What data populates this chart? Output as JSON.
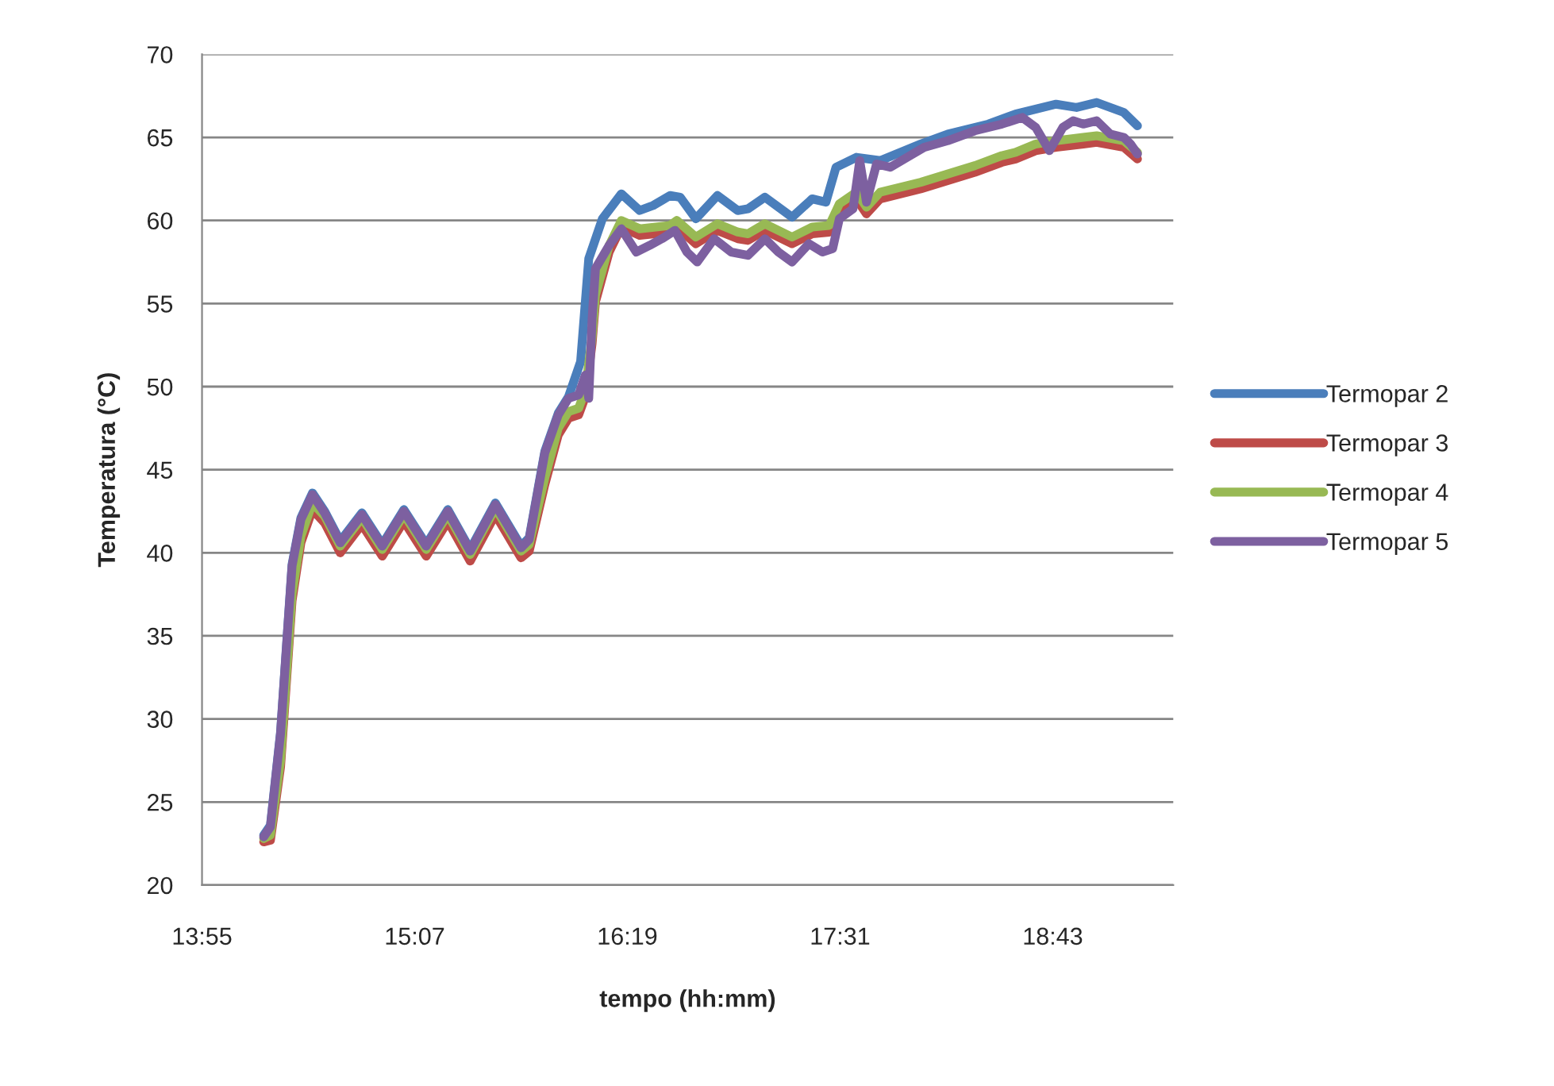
{
  "chart_data": {
    "type": "line",
    "xlabel": "tempo (hh:mm)",
    "ylabel": "Temperatura (°C)",
    "xlim": [
      13.92,
      19.4
    ],
    "xticks": [
      {
        "value": 13.92,
        "label": "13:55"
      },
      {
        "value": 15.12,
        "label": "15:07"
      },
      {
        "value": 16.32,
        "label": "16:19"
      },
      {
        "value": 17.52,
        "label": "17:31"
      },
      {
        "value": 18.72,
        "label": "18:43"
      }
    ],
    "ylim": [
      20,
      70
    ],
    "yticks": [
      20,
      25,
      30,
      35,
      40,
      45,
      50,
      55,
      60,
      65,
      70
    ],
    "grid": "y",
    "legend": "right",
    "marker": "none",
    "line_style": "solid",
    "series": [
      {
        "name": "Termopar 2",
        "color": "#4a7ebb",
        "x": [
          14.268,
          14.306,
          14.363,
          14.428,
          14.478,
          14.543,
          14.612,
          14.7,
          14.822,
          14.937,
          15.059,
          15.185,
          15.307,
          15.433,
          15.575,
          15.72,
          15.766,
          15.854,
          15.93,
          15.988,
          16.056,
          16.102,
          16.179,
          16.286,
          16.389,
          16.465,
          16.561,
          16.618,
          16.706,
          16.828,
          16.943,
          17.0,
          17.096,
          17.249,
          17.363,
          17.44,
          17.497,
          17.612,
          17.746,
          17.975,
          18.128,
          18.357,
          18.51,
          18.739,
          18.854,
          18.968,
          19.121,
          19.198
        ],
        "values": [
          23.0,
          23.6,
          29.2,
          39.3,
          42.1,
          43.6,
          42.5,
          40.7,
          42.4,
          40.5,
          42.6,
          40.5,
          42.6,
          40.2,
          43.0,
          40.4,
          40.9,
          46.1,
          48.4,
          49.4,
          51.5,
          57.7,
          60.1,
          61.6,
          60.6,
          60.9,
          61.5,
          61.4,
          60.1,
          61.5,
          60.6,
          60.7,
          61.4,
          60.2,
          61.3,
          61.1,
          63.2,
          63.8,
          63.6,
          64.6,
          65.2,
          65.8,
          66.4,
          67.0,
          66.8,
          67.1,
          66.5,
          65.7
        ]
      },
      {
        "name": "Termopar 3",
        "color": "#be4b48",
        "x": [
          14.268,
          14.306,
          14.363,
          14.428,
          14.478,
          14.543,
          14.612,
          14.7,
          14.822,
          14.937,
          15.059,
          15.185,
          15.307,
          15.433,
          15.575,
          15.72,
          15.766,
          15.854,
          15.93,
          15.988,
          16.045,
          16.083,
          16.121,
          16.14,
          16.217,
          16.286,
          16.389,
          16.561,
          16.599,
          16.706,
          16.828,
          16.943,
          17.0,
          17.096,
          17.249,
          17.363,
          17.459,
          17.516,
          17.612,
          17.669,
          17.746,
          17.975,
          18.128,
          18.281,
          18.433,
          18.51,
          18.624,
          18.739,
          18.892,
          18.968,
          19.121,
          19.198
        ],
        "values": [
          22.6,
          22.7,
          27.1,
          37.1,
          40.6,
          42.6,
          41.8,
          40.0,
          41.7,
          39.8,
          41.9,
          39.8,
          41.9,
          39.5,
          42.3,
          39.7,
          40.1,
          44.1,
          47.1,
          48.1,
          48.3,
          49.4,
          52.6,
          55.1,
          58.1,
          59.6,
          59.1,
          59.3,
          59.6,
          58.6,
          59.4,
          58.9,
          58.8,
          59.4,
          58.6,
          59.2,
          59.3,
          60.6,
          61.3,
          60.4,
          61.3,
          61.9,
          62.4,
          62.9,
          63.5,
          63.7,
          64.2,
          64.4,
          64.6,
          64.7,
          64.4,
          63.7
        ]
      },
      {
        "name": "Termopar 4",
        "color": "#98b954",
        "x": [
          14.268,
          14.306,
          14.363,
          14.428,
          14.478,
          14.543,
          14.612,
          14.7,
          14.822,
          14.937,
          15.059,
          15.185,
          15.307,
          15.433,
          15.575,
          15.72,
          15.766,
          15.854,
          15.93,
          15.988,
          16.045,
          16.083,
          16.121,
          16.14,
          16.217,
          16.286,
          16.389,
          16.561,
          16.599,
          16.706,
          16.828,
          16.943,
          17.0,
          17.096,
          17.249,
          17.363,
          17.459,
          17.516,
          17.612,
          17.669,
          17.746,
          17.975,
          18.128,
          18.281,
          18.433,
          18.51,
          18.624,
          18.739,
          18.892,
          18.968,
          19.121,
          19.198
        ],
        "values": [
          22.8,
          23.0,
          27.5,
          37.5,
          41.0,
          43.0,
          42.2,
          40.4,
          42.1,
          40.2,
          42.3,
          40.2,
          42.3,
          39.9,
          42.7,
          40.1,
          40.5,
          44.5,
          47.5,
          48.5,
          48.7,
          49.8,
          53.0,
          55.5,
          58.5,
          60.0,
          59.5,
          59.7,
          60.0,
          59.0,
          59.8,
          59.3,
          59.2,
          59.8,
          59.0,
          59.6,
          59.7,
          61.0,
          61.7,
          60.8,
          61.7,
          62.3,
          62.8,
          63.3,
          63.9,
          64.1,
          64.6,
          64.8,
          65.0,
          65.1,
          64.8,
          64.1
        ]
      },
      {
        "name": "Termopar 5",
        "color": "#7d60a0",
        "x": [
          14.268,
          14.306,
          14.363,
          14.428,
          14.478,
          14.543,
          14.612,
          14.7,
          14.822,
          14.937,
          15.059,
          15.185,
          15.307,
          15.433,
          15.575,
          15.72,
          15.766,
          15.854,
          15.93,
          15.988,
          16.045,
          16.083,
          16.102,
          16.121,
          16.14,
          16.217,
          16.286,
          16.37,
          16.446,
          16.515,
          16.588,
          16.656,
          16.714,
          16.809,
          16.905,
          17.0,
          17.096,
          17.172,
          17.249,
          17.344,
          17.421,
          17.478,
          17.516,
          17.593,
          17.631,
          17.669,
          17.726,
          17.803,
          17.898,
          17.994,
          18.128,
          18.281,
          18.433,
          18.548,
          18.624,
          18.701,
          18.777,
          18.835,
          18.892,
          18.968,
          19.045,
          19.121,
          19.159,
          19.198
        ],
        "values": [
          22.9,
          23.5,
          29.1,
          39.2,
          42.0,
          43.5,
          42.4,
          40.6,
          42.3,
          40.4,
          42.5,
          40.4,
          42.5,
          40.1,
          42.9,
          40.3,
          40.8,
          46.0,
          48.3,
          49.3,
          49.5,
          50.7,
          49.3,
          54.1,
          57.1,
          58.5,
          59.5,
          58.1,
          58.5,
          58.9,
          59.4,
          58.1,
          57.5,
          58.9,
          58.1,
          57.9,
          58.9,
          58.1,
          57.5,
          58.6,
          58.1,
          58.3,
          60.1,
          60.7,
          63.6,
          61.1,
          63.4,
          63.2,
          63.8,
          64.4,
          64.8,
          65.4,
          65.8,
          66.2,
          65.6,
          64.2,
          65.6,
          66.0,
          65.8,
          66.0,
          65.2,
          65.0,
          64.6,
          64.0
        ]
      }
    ]
  }
}
